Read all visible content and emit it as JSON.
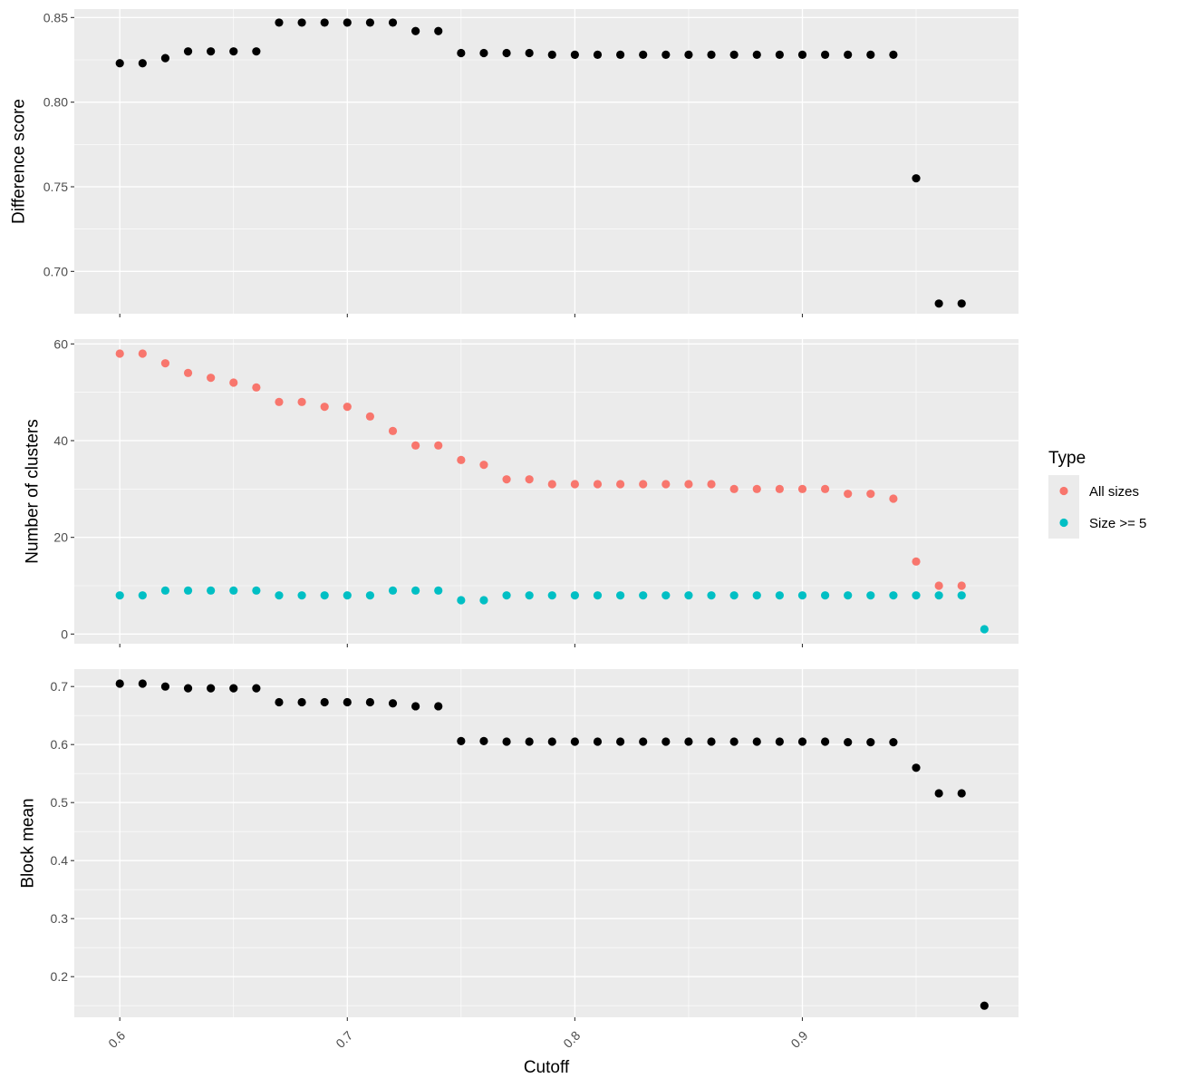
{
  "chart_data": [
    {
      "type": "scatter",
      "title": "",
      "xlabel": "",
      "ylabel": "Difference score",
      "xlim": [
        0.58,
        0.995
      ],
      "ylim": [
        0.675,
        0.855
      ],
      "yticks": [
        0.7,
        0.75,
        0.8,
        0.85
      ],
      "ytick_labels": [
        "0.70",
        "0.75",
        "0.80",
        "0.85"
      ],
      "grid": true,
      "series": [
        {
          "color": "#000000",
          "x": [
            0.6,
            0.61,
            0.62,
            0.63,
            0.64,
            0.65,
            0.66,
            0.67,
            0.68,
            0.69,
            0.7,
            0.71,
            0.72,
            0.73,
            0.74,
            0.75,
            0.76,
            0.77,
            0.78,
            0.79,
            0.8,
            0.81,
            0.82,
            0.83,
            0.84,
            0.85,
            0.86,
            0.87,
            0.88,
            0.89,
            0.9,
            0.91,
            0.92,
            0.93,
            0.94,
            0.95,
            0.96,
            0.97
          ],
          "y": [
            0.823,
            0.823,
            0.826,
            0.83,
            0.83,
            0.83,
            0.83,
            0.847,
            0.847,
            0.847,
            0.847,
            0.847,
            0.847,
            0.842,
            0.842,
            0.829,
            0.829,
            0.829,
            0.829,
            0.828,
            0.828,
            0.828,
            0.828,
            0.828,
            0.828,
            0.828,
            0.828,
            0.828,
            0.828,
            0.828,
            0.828,
            0.828,
            0.828,
            0.828,
            0.828,
            0.755,
            0.681,
            0.681
          ]
        }
      ]
    },
    {
      "type": "scatter",
      "title": "",
      "xlabel": "",
      "ylabel": "Number of clusters",
      "xlim": [
        0.58,
        0.995
      ],
      "ylim": [
        -2,
        61
      ],
      "yticks": [
        0,
        20,
        40,
        60
      ],
      "ytick_labels": [
        "0",
        "20",
        "40",
        "60"
      ],
      "grid": true,
      "legend": {
        "title": "Type",
        "position": "right"
      },
      "series": [
        {
          "name": "All sizes",
          "color": "#F8766D",
          "x": [
            0.6,
            0.61,
            0.62,
            0.63,
            0.64,
            0.65,
            0.66,
            0.67,
            0.68,
            0.69,
            0.7,
            0.71,
            0.72,
            0.73,
            0.74,
            0.75,
            0.76,
            0.77,
            0.78,
            0.79,
            0.8,
            0.81,
            0.82,
            0.83,
            0.84,
            0.85,
            0.86,
            0.87,
            0.88,
            0.89,
            0.9,
            0.91,
            0.92,
            0.93,
            0.94,
            0.95,
            0.96,
            0.97
          ],
          "y": [
            58,
            58,
            56,
            54,
            53,
            52,
            51,
            48,
            48,
            47,
            47,
            45,
            42,
            39,
            39,
            36,
            35,
            32,
            32,
            31,
            31,
            31,
            31,
            31,
            31,
            31,
            31,
            30,
            30,
            30,
            30,
            30,
            29,
            29,
            28,
            15,
            10,
            10
          ]
        },
        {
          "name": "Size >= 5",
          "color": "#00BFC4",
          "x": [
            0.6,
            0.61,
            0.62,
            0.63,
            0.64,
            0.65,
            0.66,
            0.67,
            0.68,
            0.69,
            0.7,
            0.71,
            0.72,
            0.73,
            0.74,
            0.75,
            0.76,
            0.77,
            0.78,
            0.79,
            0.8,
            0.81,
            0.82,
            0.83,
            0.84,
            0.85,
            0.86,
            0.87,
            0.88,
            0.89,
            0.9,
            0.91,
            0.92,
            0.93,
            0.94,
            0.95,
            0.96,
            0.97,
            0.98
          ],
          "y": [
            8,
            8,
            9,
            9,
            9,
            9,
            9,
            8,
            8,
            8,
            8,
            8,
            9,
            9,
            9,
            7,
            7,
            8,
            8,
            8,
            8,
            8,
            8,
            8,
            8,
            8,
            8,
            8,
            8,
            8,
            8,
            8,
            8,
            8,
            8,
            8,
            8,
            8,
            1
          ]
        }
      ]
    },
    {
      "type": "scatter",
      "title": "",
      "xlabel": "Cutoff",
      "ylabel": "Block mean",
      "xlim": [
        0.58,
        0.995
      ],
      "ylim": [
        0.13,
        0.73
      ],
      "yticks": [
        0.2,
        0.3,
        0.4,
        0.5,
        0.6,
        0.7
      ],
      "ytick_labels": [
        "0.2",
        "0.3",
        "0.4",
        "0.5",
        "0.6",
        "0.7"
      ],
      "xticks": [
        0.6,
        0.7,
        0.8,
        0.9
      ],
      "xtick_labels": [
        "0.6",
        "0.7",
        "0.8",
        "0.9"
      ],
      "grid": true,
      "series": [
        {
          "color": "#000000",
          "x": [
            0.6,
            0.61,
            0.62,
            0.63,
            0.64,
            0.65,
            0.66,
            0.67,
            0.68,
            0.69,
            0.7,
            0.71,
            0.72,
            0.73,
            0.74,
            0.75,
            0.76,
            0.77,
            0.78,
            0.79,
            0.8,
            0.81,
            0.82,
            0.83,
            0.84,
            0.85,
            0.86,
            0.87,
            0.88,
            0.89,
            0.9,
            0.91,
            0.92,
            0.93,
            0.94,
            0.95,
            0.96,
            0.97,
            0.98
          ],
          "y": [
            0.705,
            0.705,
            0.7,
            0.697,
            0.697,
            0.697,
            0.697,
            0.673,
            0.673,
            0.673,
            0.673,
            0.673,
            0.671,
            0.666,
            0.666,
            0.606,
            0.606,
            0.605,
            0.605,
            0.605,
            0.605,
            0.605,
            0.605,
            0.605,
            0.605,
            0.605,
            0.605,
            0.605,
            0.605,
            0.605,
            0.605,
            0.605,
            0.604,
            0.604,
            0.604,
            0.56,
            0.516,
            0.516,
            0.15
          ]
        }
      ]
    }
  ]
}
